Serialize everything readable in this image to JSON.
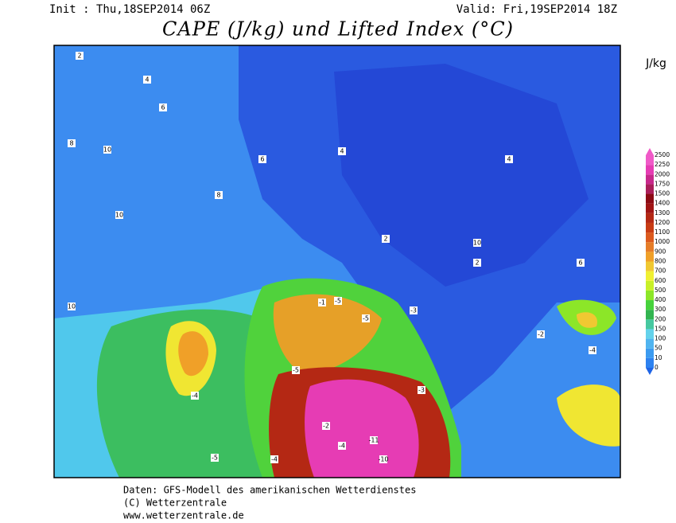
{
  "header": {
    "init": "Init : Thu,18SEP2014 06Z",
    "valid": "Valid: Fri,19SEP2014 18Z",
    "title": "CAPE (J/kg) und Lifted Index (°C)"
  },
  "colorbar": {
    "unit": "J/kg",
    "levels": [
      0,
      10,
      50,
      100,
      150,
      200,
      300,
      400,
      500,
      600,
      700,
      800,
      900,
      1000,
      1100,
      1200,
      1300,
      1400,
      1500,
      1750,
      2000,
      2250,
      2500
    ],
    "colors": [
      "#1e64e6",
      "#2d82f0",
      "#3c9bf0",
      "#50b4f0",
      "#64d2eb",
      "#46c8a0",
      "#32b450",
      "#46d23c",
      "#8ce628",
      "#c8f028",
      "#f0f032",
      "#f0c832",
      "#f0a028",
      "#e67d28",
      "#dc5a1e",
      "#c83c14",
      "#b42814",
      "#a01414",
      "#8c0a14",
      "#aa1e5a",
      "#c8288c",
      "#e63cb4",
      "#f05ac8"
    ]
  },
  "map": {
    "labels": [
      "2",
      "4",
      "6",
      "8",
      "10",
      "10",
      "8",
      "6",
      "4",
      "2",
      "-1",
      "-3",
      "-5",
      "-5",
      "-4",
      "-2",
      "-4",
      "-5",
      "-11",
      "-10",
      "-4",
      "-5",
      "-4",
      "2",
      "4",
      "6",
      "10",
      "10",
      "-3",
      "-2"
    ]
  },
  "footer": {
    "lines": [
      "Daten: GFS-Modell des amerikanischen Wetterdienstes",
      "(C) Wetterzentrale",
      "www.wetterzentrale.de"
    ]
  }
}
